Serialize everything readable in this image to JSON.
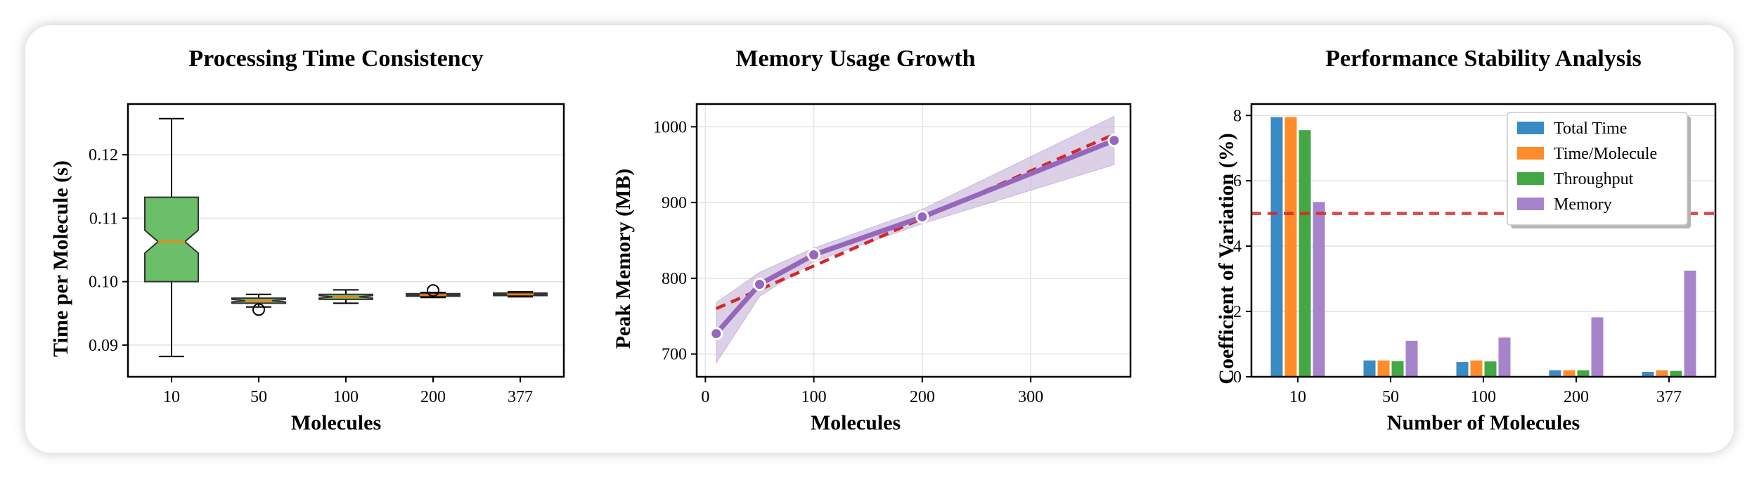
{
  "colors": {
    "box_fill": "#6bbf69",
    "box_edge": "#333333",
    "median": "#ff7f0e",
    "memory_line": "#9467bd",
    "band": "#c5b0d5",
    "fit_line": "#d62728",
    "total_time": "#3a8ac4",
    "time_per_molecule": "#ff8c29",
    "throughput": "#43a843",
    "memory": "#a783cc",
    "threshold": "#d62728"
  },
  "chart_data": [
    {
      "type": "box",
      "title": "Processing Time Consistency",
      "xlabel": "Molecules",
      "ylabel": "Time per Molecule (s)",
      "ylim": [
        0.085,
        0.128
      ],
      "yticks": [
        0.09,
        0.1,
        0.11,
        0.12
      ],
      "ytick_labels": [
        "0.09",
        "0.10",
        "0.11",
        "0.12"
      ],
      "grid": true,
      "categories": [
        "10",
        "50",
        "100",
        "200",
        "377"
      ],
      "boxes": [
        {
          "whisker_low": 0.0882,
          "q1": 0.1,
          "median": 0.1063,
          "q3": 0.1133,
          "whisker_high": 0.1257,
          "notch_low": 0.1045,
          "notch_high": 0.1081,
          "outliers": []
        },
        {
          "whisker_low": 0.096,
          "q1": 0.0966,
          "median": 0.097,
          "q3": 0.0974,
          "whisker_high": 0.098,
          "notch_low": 0.0968,
          "notch_high": 0.0972,
          "outliers": [
            0.0956
          ]
        },
        {
          "whisker_low": 0.0966,
          "q1": 0.0972,
          "median": 0.0976,
          "q3": 0.098,
          "whisker_high": 0.0987,
          "notch_low": 0.0974,
          "notch_high": 0.0978,
          "outliers": []
        },
        {
          "whisker_low": 0.0975,
          "q1": 0.0977,
          "median": 0.0979,
          "q3": 0.0981,
          "whisker_high": 0.0983,
          "notch_low": 0.0978,
          "notch_high": 0.098,
          "outliers": [
            0.0986
          ]
        },
        {
          "whisker_low": 0.0976,
          "q1": 0.0978,
          "median": 0.098,
          "q3": 0.0982,
          "whisker_high": 0.0984,
          "notch_low": 0.0979,
          "notch_high": 0.0981,
          "outliers": []
        }
      ]
    },
    {
      "type": "line",
      "title": "Memory Usage Growth",
      "xlabel": "Molecules",
      "ylabel": "Peak Memory (MB)",
      "xlim": [
        -8,
        392
      ],
      "ylim": [
        670,
        1030
      ],
      "xticks": [
        0,
        100,
        200,
        300
      ],
      "yticks": [
        700,
        800,
        900,
        1000
      ],
      "grid": true,
      "x": [
        10,
        50,
        100,
        200,
        377
      ],
      "series": [
        {
          "values": [
            727,
            792,
            831,
            881,
            982
          ],
          "band_low": [
            688,
            776,
            822,
            872,
            950
          ],
          "band_high": [
            768,
            808,
            840,
            891,
            1014
          ]
        }
      ],
      "fit": {
        "x": [
          10,
          377
        ],
        "y": [
          760,
          990
        ]
      }
    },
    {
      "type": "bar",
      "title": "Performance Stability Analysis",
      "xlabel": "Number of Molecules",
      "ylabel": "Coefficient of Variation (%)",
      "ylim": [
        0,
        8.35
      ],
      "yticks": [
        0,
        2,
        4,
        6,
        8
      ],
      "grid": true,
      "legend_position": "top-right",
      "threshold": 5,
      "categories": [
        "10",
        "50",
        "100",
        "200",
        "377"
      ],
      "series": [
        {
          "name": "Total Time",
          "values": [
            7.95,
            0.5,
            0.45,
            0.2,
            0.15
          ]
        },
        {
          "name": "Time/Molecule",
          "values": [
            7.95,
            0.5,
            0.5,
            0.2,
            0.2
          ]
        },
        {
          "name": "Throughput",
          "values": [
            7.55,
            0.48,
            0.47,
            0.2,
            0.18
          ]
        },
        {
          "name": "Memory",
          "values": [
            5.35,
            1.1,
            1.2,
            1.82,
            3.25
          ]
        }
      ]
    }
  ]
}
